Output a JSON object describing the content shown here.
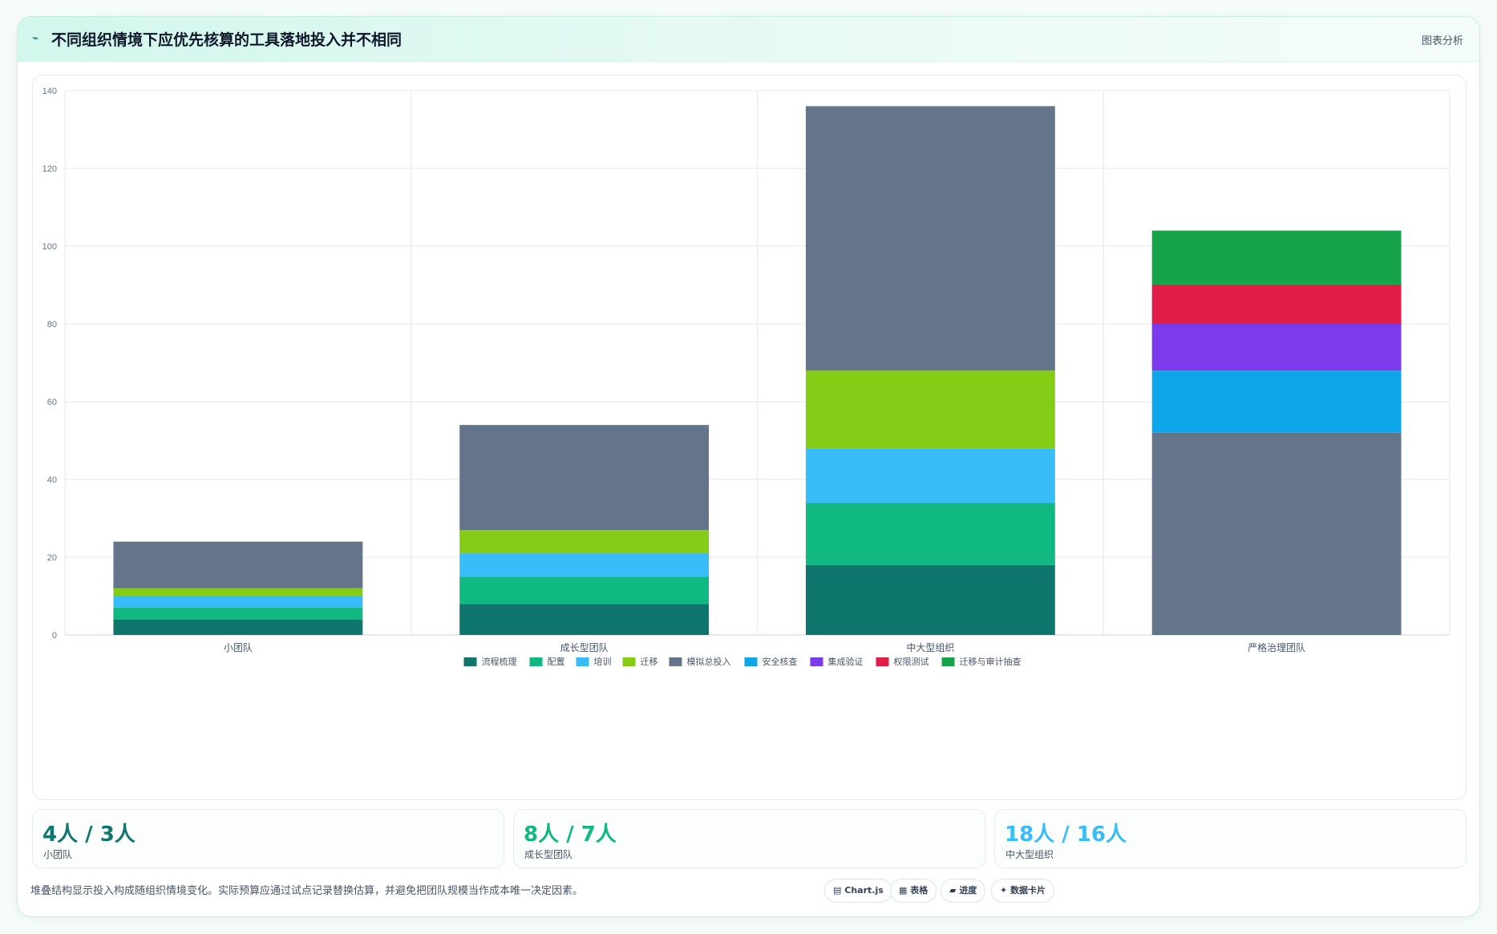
{
  "header": {
    "title": "不同组织情境下应优先核算的工具落地投入并不相同",
    "action_label": "图表分析"
  },
  "chart_data": {
    "type": "bar",
    "stacked": true,
    "categories": [
      "小团队",
      "成长型团队",
      "中大型组织",
      "严格治理团队"
    ],
    "ylim": [
      0,
      140
    ],
    "yticks": [
      0,
      20,
      40,
      60,
      80,
      100,
      120,
      140
    ],
    "grid": true,
    "legend_position": "bottom",
    "series": [
      {
        "name": "流程梳理",
        "color": "#0f766e",
        "values": [
          4,
          8,
          18,
          0
        ]
      },
      {
        "name": "配置",
        "color": "#10b981",
        "values": [
          3,
          7,
          16,
          0
        ]
      },
      {
        "name": "培训",
        "color": "#38bdf8",
        "values": [
          3,
          6,
          14,
          0
        ]
      },
      {
        "name": "迁移",
        "color": "#84cc16",
        "values": [
          2,
          6,
          20,
          0
        ]
      },
      {
        "name": "模拟总投入",
        "color": "#64748b",
        "values": [
          12,
          27,
          68,
          52
        ]
      },
      {
        "name": "安全核查",
        "color": "#0ea5e9",
        "values": [
          0,
          0,
          0,
          16
        ]
      },
      {
        "name": "集成验证",
        "color": "#7c3aed",
        "values": [
          0,
          0,
          0,
          12
        ]
      },
      {
        "name": "权限测试",
        "color": "#e11d48",
        "values": [
          0,
          0,
          0,
          10
        ]
      },
      {
        "name": "迁移与审计抽查",
        "color": "#16a34a",
        "values": [
          0,
          0,
          0,
          14
        ]
      }
    ]
  },
  "kpis": [
    {
      "value": "4人 / 3人",
      "label": "小团队",
      "color": "#0f766e"
    },
    {
      "value": "8人 / 7人",
      "label": "成长型团队",
      "color": "#10b981"
    },
    {
      "value": "18人 / 16人",
      "label": "中大型组织",
      "color": "#38bdf8"
    }
  ],
  "footer": {
    "note": "堆叠结构显示投入构成随组织情境变化。实际预算应通过试点记录替换估算，并避免把团队规模当作成本唯一决定因素。"
  },
  "chips": [
    {
      "icon": "▤",
      "label": "Chart.js"
    },
    {
      "icon": "▦",
      "label": "表格"
    },
    {
      "icon": "▰",
      "label": "进度"
    },
    {
      "icon": "✦",
      "label": "数据卡片"
    }
  ]
}
